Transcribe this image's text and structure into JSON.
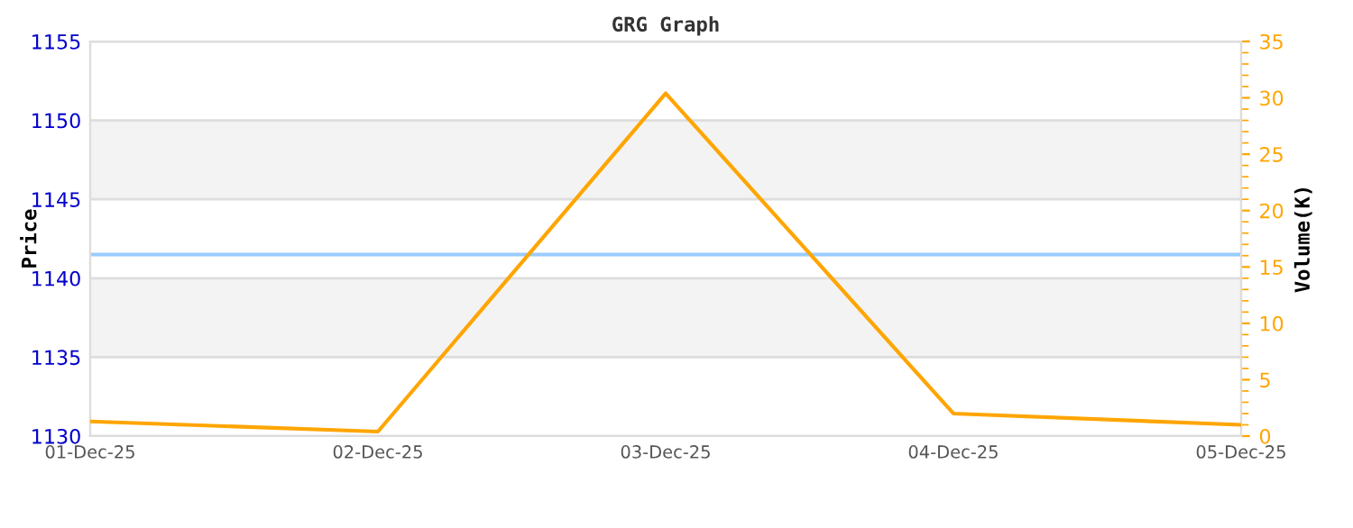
{
  "chart_data": {
    "type": "line",
    "title": "GRG Graph",
    "ylabel": "Price",
    "y2label": "Volume(K)",
    "categories": [
      "01-Dec-25",
      "02-Dec-25",
      "03-Dec-25",
      "04-Dec-25",
      "05-Dec-25"
    ],
    "series": [
      {
        "color": "#99ccff",
        "values": [
          1141.5,
          1141.5,
          1141.5,
          1141.5,
          1141.5
        ]
      },
      {
        "color": "#ffa500",
        "axis": "y2",
        "values": [
          1.3,
          0.4,
          30.4,
          2.0,
          1.0
        ]
      }
    ],
    "ylim": [
      1130,
      1155
    ],
    "yticks": [
      1130,
      1135,
      1140,
      1145,
      1150,
      1155
    ],
    "y2lim": [
      0,
      35
    ],
    "y2ticks": [
      0,
      5,
      10,
      15,
      20,
      25,
      30,
      35
    ],
    "bands": [
      {
        "axis": "y",
        "from": 1135,
        "to": 1140,
        "color": "#f3f3f3"
      },
      {
        "axis": "y",
        "from": 1145,
        "to": 1150,
        "color": "#f3f3f3"
      }
    ],
    "grid": "y",
    "legend": false,
    "marker": "none",
    "line_style": "solid"
  }
}
